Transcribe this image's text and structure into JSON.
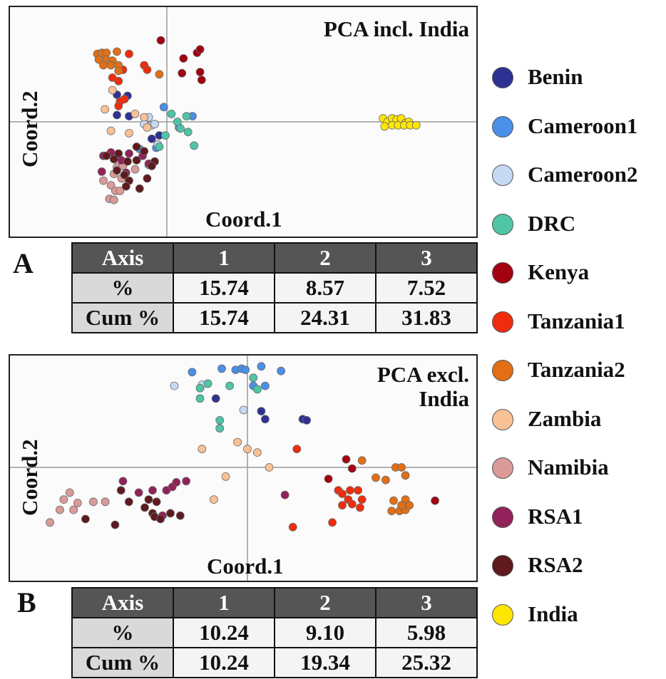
{
  "colors": {
    "Benin": "#2e3192",
    "Cameroon1": "#4a8fe8",
    "Cameroon2": "#c6daf5",
    "DRC": "#4fc4a6",
    "Kenya": "#a30010",
    "Tanzania1": "#f02c0c",
    "Tanzania2": "#e26f15",
    "Zambia": "#f8c196",
    "Namibia": "#d99a98",
    "RSA1": "#93215a",
    "RSA2": "#5e1a1e",
    "India": "#ffe600"
  },
  "legend": [
    "Benin",
    "Cameroon1",
    "Cameroon2",
    "DRC",
    "Kenya",
    "Tanzania1",
    "Tanzania2",
    "Zambia",
    "Namibia",
    "RSA1",
    "RSA2",
    "India"
  ],
  "panelA": {
    "letter": "A",
    "table": {
      "header": [
        "Axis",
        "1",
        "2",
        "3"
      ],
      "rows": [
        [
          "%",
          "15.74",
          "8.57",
          "7.52"
        ],
        [
          "Cum %",
          "15.74",
          "24.31",
          "31.83"
        ]
      ]
    }
  },
  "panelB": {
    "letter": "B",
    "table": {
      "header": [
        "Axis",
        "1",
        "2",
        "3"
      ],
      "rows": [
        [
          "%",
          "10.24",
          "9.10",
          "5.98"
        ],
        [
          "Cum %",
          "10.24",
          "19.34",
          "25.32"
        ]
      ]
    }
  },
  "chart_data": [
    {
      "type": "scatter",
      "title": "PCA incl. India",
      "xlabel": "Coord.1",
      "ylabel": "Coord.2",
      "xlim": [
        -1.0,
        2.0
      ],
      "ylim": [
        -0.9,
        0.9
      ],
      "grid": false,
      "series": [
        {
          "name": "Benin",
          "points": [
            [
              -0.33,
              0.24
            ],
            [
              -0.26,
              0.23
            ],
            [
              -0.33,
              0.06
            ],
            [
              -0.25,
              0.05
            ],
            [
              -0.05,
              -0.12
            ],
            [
              -0.1,
              -0.15
            ]
          ]
        },
        {
          "name": "Cameroon1",
          "points": [
            [
              -0.02,
              0.13
            ],
            [
              0.17,
              0.05
            ],
            [
              0.08,
              -0.05
            ],
            [
              -0.18,
              -0.24
            ],
            [
              -0.07,
              -0.23
            ]
          ]
        },
        {
          "name": "Cameroon2",
          "points": [
            [
              -0.12,
              0.04
            ],
            [
              -0.1,
              -0.03
            ],
            [
              -0.15,
              -0.02
            ],
            [
              -0.08,
              -0.02
            ],
            [
              -0.06,
              -0.2
            ],
            [
              -0.12,
              -0.38
            ]
          ]
        },
        {
          "name": "DRC",
          "points": [
            [
              0.03,
              0.07
            ],
            [
              0.07,
              0.0
            ],
            [
              0.13,
              0.05
            ],
            [
              0.09,
              -0.06
            ],
            [
              0.14,
              -0.09
            ],
            [
              -0.01,
              -0.12
            ],
            [
              0.18,
              -0.21
            ],
            [
              -0.05,
              -0.22
            ]
          ]
        },
        {
          "name": "Kenya",
          "points": [
            [
              -0.04,
              0.72
            ],
            [
              0.2,
              0.61
            ],
            [
              0.22,
              0.64
            ],
            [
              0.11,
              0.56
            ],
            [
              0.1,
              0.43
            ],
            [
              0.22,
              0.44
            ],
            [
              0.23,
              0.37
            ]
          ]
        },
        {
          "name": "Tanzania1",
          "points": [
            [
              -0.25,
              0.6
            ],
            [
              -0.15,
              0.5
            ],
            [
              -0.13,
              0.46
            ],
            [
              -0.29,
              0.46
            ],
            [
              -0.36,
              0.39
            ],
            [
              -0.32,
              0.36
            ],
            [
              -0.28,
              0.2
            ],
            [
              -0.31,
              0.18
            ],
            [
              -0.32,
              0.14
            ]
          ]
        },
        {
          "name": "Tanzania2",
          "points": [
            [
              -0.46,
              0.6
            ],
            [
              -0.43,
              0.61
            ],
            [
              -0.4,
              0.61
            ],
            [
              -0.33,
              0.62
            ],
            [
              -0.45,
              0.55
            ],
            [
              -0.4,
              0.55
            ],
            [
              -0.36,
              0.54
            ],
            [
              -0.42,
              0.5
            ],
            [
              -0.37,
              0.5
            ],
            [
              -0.32,
              0.5
            ],
            [
              -0.32,
              0.45
            ],
            [
              -0.05,
              0.42
            ]
          ]
        },
        {
          "name": "Zambia",
          "points": [
            [
              -0.36,
              0.28
            ],
            [
              -0.41,
              0.11
            ],
            [
              -0.21,
              0.07
            ],
            [
              -0.15,
              0.04
            ],
            [
              -0.37,
              -0.08
            ],
            [
              -0.25,
              -0.1
            ],
            [
              -0.13,
              -0.05
            ]
          ]
        },
        {
          "name": "Namibia",
          "points": [
            [
              -0.33,
              -0.4
            ],
            [
              -0.29,
              -0.39
            ],
            [
              -0.21,
              -0.42
            ],
            [
              -0.35,
              -0.46
            ],
            [
              -0.3,
              -0.5
            ],
            [
              -0.42,
              -0.52
            ],
            [
              -0.37,
              -0.56
            ],
            [
              -0.34,
              -0.61
            ],
            [
              -0.31,
              -0.61
            ],
            [
              -0.38,
              -0.68
            ],
            [
              -0.35,
              -0.69
            ]
          ]
        },
        {
          "name": "RSA1",
          "points": [
            [
              -0.37,
              -0.27
            ],
            [
              -0.42,
              -0.3
            ],
            [
              -0.25,
              -0.28
            ],
            [
              -0.16,
              -0.3
            ],
            [
              -0.3,
              -0.34
            ],
            [
              -0.43,
              -0.44
            ],
            [
              -0.27,
              -0.45
            ],
            [
              -0.12,
              -0.37
            ]
          ]
        },
        {
          "name": "RSA2",
          "points": [
            [
              -0.4,
              -0.3
            ],
            [
              -0.32,
              -0.28
            ],
            [
              -0.2,
              -0.22
            ],
            [
              -0.15,
              -0.26
            ],
            [
              -0.35,
              -0.33
            ],
            [
              -0.26,
              -0.35
            ],
            [
              -0.2,
              -0.34
            ],
            [
              -0.08,
              -0.35
            ],
            [
              -0.1,
              -0.39
            ],
            [
              -0.33,
              -0.43
            ],
            [
              -0.28,
              -0.47
            ],
            [
              -0.25,
              -0.52
            ],
            [
              -0.13,
              -0.5
            ],
            [
              -0.27,
              -0.57
            ],
            [
              -0.18,
              -0.59
            ]
          ]
        },
        {
          "name": "India",
          "points": [
            [
              1.43,
              0.03
            ],
            [
              1.46,
              0.0
            ],
            [
              1.49,
              0.03
            ],
            [
              1.52,
              0.02
            ],
            [
              1.55,
              0.03
            ],
            [
              1.58,
              -0.01
            ],
            [
              1.6,
              0.0
            ],
            [
              1.49,
              -0.03
            ],
            [
              1.53,
              -0.03
            ],
            [
              1.57,
              -0.03
            ],
            [
              1.61,
              -0.03
            ],
            [
              1.65,
              -0.03
            ],
            [
              1.44,
              -0.04
            ]
          ]
        }
      ]
    },
    {
      "type": "scatter",
      "title": "PCA excl. India",
      "xlabel": "Coord.1",
      "ylabel": "Coord.2",
      "xlim": [
        -1.0,
        1.0
      ],
      "ylim": [
        -0.9,
        0.9
      ],
      "grid": false,
      "series": [
        {
          "name": "Benin",
          "points": [
            [
              -0.16,
              0.6
            ],
            [
              0.07,
              0.49
            ],
            [
              0.09,
              0.42
            ],
            [
              0.28,
              0.42
            ],
            [
              0.3,
              0.41
            ]
          ]
        },
        {
          "name": "Cameroon1",
          "points": [
            [
              -0.28,
              0.83
            ],
            [
              -0.13,
              0.86
            ],
            [
              -0.06,
              0.85
            ],
            [
              -0.03,
              0.86
            ],
            [
              -0.01,
              0.85
            ],
            [
              0.07,
              0.88
            ],
            [
              0.17,
              0.84
            ],
            [
              0.09,
              0.71
            ],
            [
              0.03,
              0.71
            ]
          ]
        },
        {
          "name": "Cameroon2",
          "points": [
            [
              -0.37,
              0.71
            ],
            [
              -0.23,
              0.72
            ],
            [
              -0.02,
              0.5
            ]
          ]
        },
        {
          "name": "DRC",
          "points": [
            [
              -0.24,
              0.69
            ],
            [
              -0.2,
              0.73
            ],
            [
              -0.09,
              0.71
            ],
            [
              0.03,
              0.78
            ],
            [
              0.05,
              0.68
            ],
            [
              -0.24,
              0.6
            ],
            [
              -0.14,
              0.41
            ],
            [
              -0.14,
              0.34
            ]
          ]
        },
        {
          "name": "Kenya",
          "points": [
            [
              0.5,
              0.07
            ],
            [
              0.53,
              -0.01
            ],
            [
              0.41,
              -0.1
            ],
            [
              0.95,
              -0.29
            ]
          ]
        },
        {
          "name": "Tanzania1",
          "points": [
            [
              0.25,
              0.16
            ],
            [
              0.46,
              -0.2
            ],
            [
              0.48,
              -0.23
            ],
            [
              0.52,
              -0.2
            ],
            [
              0.56,
              -0.2
            ],
            [
              0.51,
              -0.28
            ],
            [
              0.48,
              -0.33
            ],
            [
              0.53,
              -0.32
            ],
            [
              0.58,
              -0.28
            ],
            [
              0.57,
              -0.35
            ],
            [
              0.23,
              -0.52
            ],
            [
              0.43,
              -0.48
            ]
          ]
        },
        {
          "name": "Tanzania2",
          "points": [
            [
              0.58,
              0.06
            ],
            [
              0.65,
              -0.09
            ],
            [
              0.7,
              -0.11
            ],
            [
              0.75,
              0.0
            ],
            [
              0.78,
              0.0
            ],
            [
              0.8,
              -0.07
            ],
            [
              0.74,
              -0.29
            ],
            [
              0.8,
              -0.28
            ],
            [
              0.73,
              -0.38
            ],
            [
              0.77,
              -0.38
            ],
            [
              0.8,
              -0.37
            ],
            [
              0.78,
              -0.33
            ],
            [
              0.82,
              -0.33
            ]
          ]
        },
        {
          "name": "Zambia",
          "points": [
            [
              -0.05,
              0.22
            ],
            [
              -0.23,
              0.16
            ],
            [
              0.0,
              0.16
            ],
            [
              0.05,
              0.13
            ],
            [
              0.11,
              0.0
            ],
            [
              -0.11,
              -0.08
            ],
            [
              -0.17,
              -0.28
            ]
          ]
        },
        {
          "name": "Namibia",
          "points": [
            [
              -0.9,
              -0.22
            ],
            [
              -0.93,
              -0.28
            ],
            [
              -0.86,
              -0.31
            ],
            [
              -0.78,
              -0.3
            ],
            [
              -0.72,
              -0.3
            ],
            [
              -0.95,
              -0.37
            ],
            [
              -0.88,
              -0.37
            ],
            [
              -1.0,
              -0.48
            ]
          ]
        },
        {
          "name": "RSA1",
          "points": [
            [
              -0.63,
              -0.12
            ],
            [
              -0.55,
              -0.22
            ],
            [
              -0.48,
              -0.2
            ],
            [
              -0.41,
              -0.2
            ],
            [
              -0.38,
              -0.17
            ],
            [
              -0.36,
              -0.13
            ],
            [
              -0.31,
              -0.12
            ],
            [
              -0.43,
              -0.42
            ],
            [
              0.19,
              -0.24
            ]
          ]
        },
        {
          "name": "RSA2",
          "points": [
            [
              -0.64,
              -0.2
            ],
            [
              -0.6,
              -0.3
            ],
            [
              -0.5,
              -0.28
            ],
            [
              -0.46,
              -0.3
            ],
            [
              -0.52,
              -0.35
            ],
            [
              -0.48,
              -0.4
            ],
            [
              -0.47,
              -0.43
            ],
            [
              -0.44,
              -0.45
            ],
            [
              -0.39,
              -0.4
            ],
            [
              -0.34,
              -0.42
            ],
            [
              -0.82,
              -0.45
            ],
            [
              -0.67,
              -0.5
            ]
          ]
        }
      ]
    }
  ]
}
